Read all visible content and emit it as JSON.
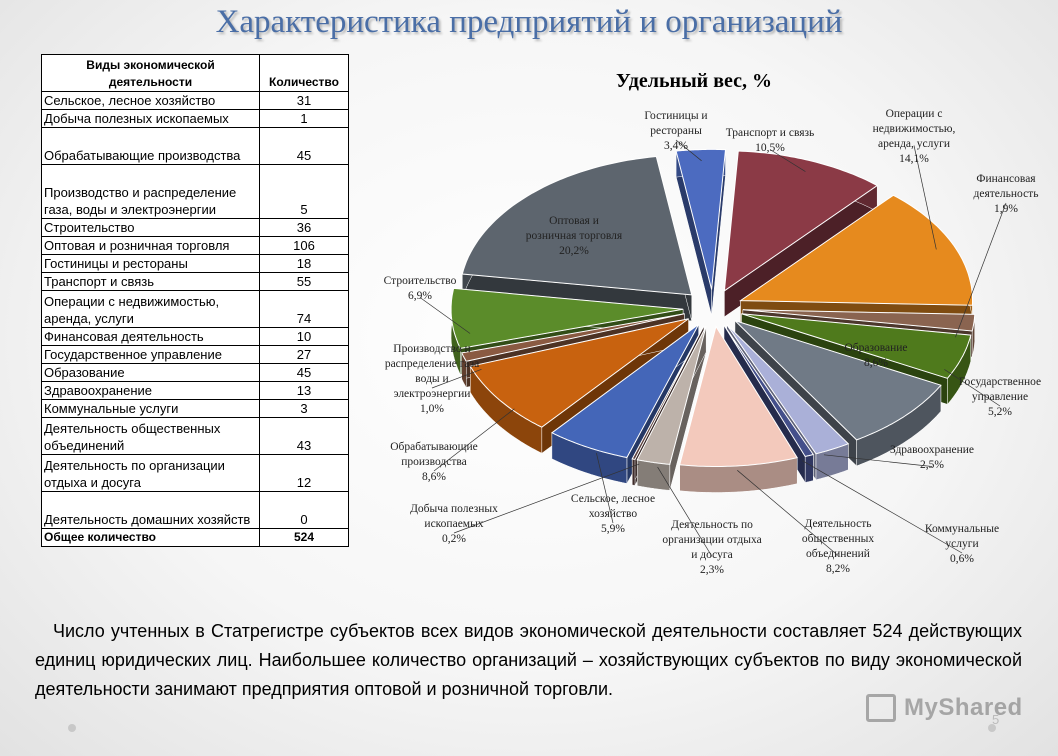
{
  "slide": {
    "title": "Характеристика предприятий и организаций",
    "caption": "Число учтенных в Статрегистре субъектов всех видов экономической деятельности составляет 524 действующих единиц юридических лиц. Наибольшее количество  организаций – хозяйствующих субъектов по виду экономической деятельности занимают предприятия оптовой и розничной торговли.",
    "watermark": "MyShared",
    "page_number": "5"
  },
  "table": {
    "header_activity": "Виды экономической деятельности",
    "header_count": "Количество",
    "rows": [
      {
        "activity": "Сельское, лесное хозяйство",
        "count": "31"
      },
      {
        "activity": "Добыча полезных ископаемых",
        "count": "1"
      },
      {
        "activity": "Обрабатывающие производства",
        "count": "45"
      },
      {
        "activity": "Производство и распределение газа, воды и электроэнергии",
        "count": "5"
      },
      {
        "activity": "Строительство",
        "count": "36"
      },
      {
        "activity": "Оптовая и розничная торговля",
        "count": "106"
      },
      {
        "activity": "Гостиницы и рестораны",
        "count": "18"
      },
      {
        "activity": "Транспорт и связь",
        "count": "55"
      },
      {
        "activity": "Операции с недвижимостью, аренда, услуги",
        "count": "74"
      },
      {
        "activity": "Финансовая деятельность",
        "count": "10"
      },
      {
        "activity": "Государственное управление",
        "count": "27"
      },
      {
        "activity": "Образование",
        "count": "45"
      },
      {
        "activity": "Здравоохранение",
        "count": "13"
      },
      {
        "activity": "Коммунальные услуги",
        "count": "3"
      },
      {
        "activity": "Деятельность общественных объединений",
        "count": "43"
      },
      {
        "activity": "Деятельность по организации отдыха и досуга",
        "count": "12"
      },
      {
        "activity": "Деятельность домашних хозяйств",
        "count": "0"
      }
    ],
    "total_label": "Общее количество",
    "total_value": "524"
  },
  "chart_data": {
    "type": "pie",
    "title": "Удельный вес, %",
    "slices": [
      {
        "name": "Транспорт и связь",
        "value": 10.5,
        "value_label": "10,5%",
        "color": "#8b3a46"
      },
      {
        "name": "Операции с недвижимостью, аренда, услуги",
        "value": 14.1,
        "value_label": "14,1%",
        "color": "#e68a1e"
      },
      {
        "name": "Финансовая деятельность",
        "value": 1.9,
        "value_label": "1,9%",
        "color": "#8a6450"
      },
      {
        "name": "Государственное управление",
        "value": 5.2,
        "value_label": "5,2%",
        "color": "#4f7a1c"
      },
      {
        "name": "Образование",
        "value": 8.6,
        "value_label": "8,6%",
        "color": "#707a86"
      },
      {
        "name": "Здравоохранение",
        "value": 2.5,
        "value_label": "2,5%",
        "color": "#aab0d8"
      },
      {
        "name": "Коммунальные услуги",
        "value": 0.6,
        "value_label": "0,6%",
        "color": "#444f8a"
      },
      {
        "name": "Деятельность общественных объединений",
        "value": 8.2,
        "value_label": "8,2%",
        "color": "#f3c9bc"
      },
      {
        "name": "Деятельность по организации отдыха и досуга",
        "value": 2.3,
        "value_label": "2,3%",
        "color": "#bdb2aa"
      },
      {
        "name": "Добыча полезных ископаемых",
        "value": 0.2,
        "value_label": "0,2%",
        "color": "#5a3f3c"
      },
      {
        "name": "Сельское, лесное хозяйство",
        "value": 5.9,
        "value_label": "5,9%",
        "color": "#4466b8"
      },
      {
        "name": "Обрабатывающие производства",
        "value": 8.6,
        "value_label": "8,6%",
        "color": "#c8620f"
      },
      {
        "name": "Производство и распределение газа воды и электроэнергии",
        "value": 1.0,
        "value_label": "1,0%",
        "color": "#8a5a42"
      },
      {
        "name": "Строительство",
        "value": 6.9,
        "value_label": "6,9%",
        "color": "#5b8c2a"
      },
      {
        "name": "Оптовая и розничная торговля",
        "value": 20.2,
        "value_label": "20,2%",
        "color": "#5d656e"
      },
      {
        "name": "Гостиницы и рестораны",
        "value": 3.4,
        "value_label": "3,4%",
        "color": "#4c6bc0"
      }
    ],
    "labels": [
      {
        "lines": [
          "Транспорт и связь",
          "10,5%"
        ]
      },
      {
        "lines": [
          "Операции с",
          "недвижимостью,",
          "аренда, услуги",
          "14,1%"
        ]
      },
      {
        "lines": [
          "Финансовая",
          "деятельность",
          "1,9%"
        ]
      },
      {
        "lines": [
          "Государственное",
          "управление",
          "5,2%"
        ]
      },
      {
        "lines": [
          "Образование",
          "8,6%"
        ]
      },
      {
        "lines": [
          "Здравоохранение",
          "2,5%"
        ]
      },
      {
        "lines": [
          "Коммунальные",
          "услуги",
          "0,6%"
        ]
      },
      {
        "lines": [
          "Деятельность",
          "общественных",
          "объединений",
          "8,2%"
        ]
      },
      {
        "lines": [
          "Деятельность по",
          "организации отдыха",
          "и досуга",
          "2,3%"
        ]
      },
      {
        "lines": [
          "Добыча полезных",
          "ископаемых",
          "0,2%"
        ]
      },
      {
        "lines": [
          "Сельское, лесное",
          "хозяйство",
          "5,9%"
        ]
      },
      {
        "lines": [
          "Обрабатывающие",
          "производства",
          "8,6%"
        ]
      },
      {
        "lines": [
          "Производство и",
          "распределение газа",
          "воды и",
          "электроэнергии",
          "1,0%"
        ]
      },
      {
        "lines": [
          "Строительство",
          "6,9%"
        ]
      },
      {
        "lines": [
          "Оптовая и",
          "розничная торговля",
          "20,2%"
        ]
      },
      {
        "lines": [
          "Гостиницы и",
          "рестораны",
          "3,4%"
        ]
      }
    ]
  }
}
